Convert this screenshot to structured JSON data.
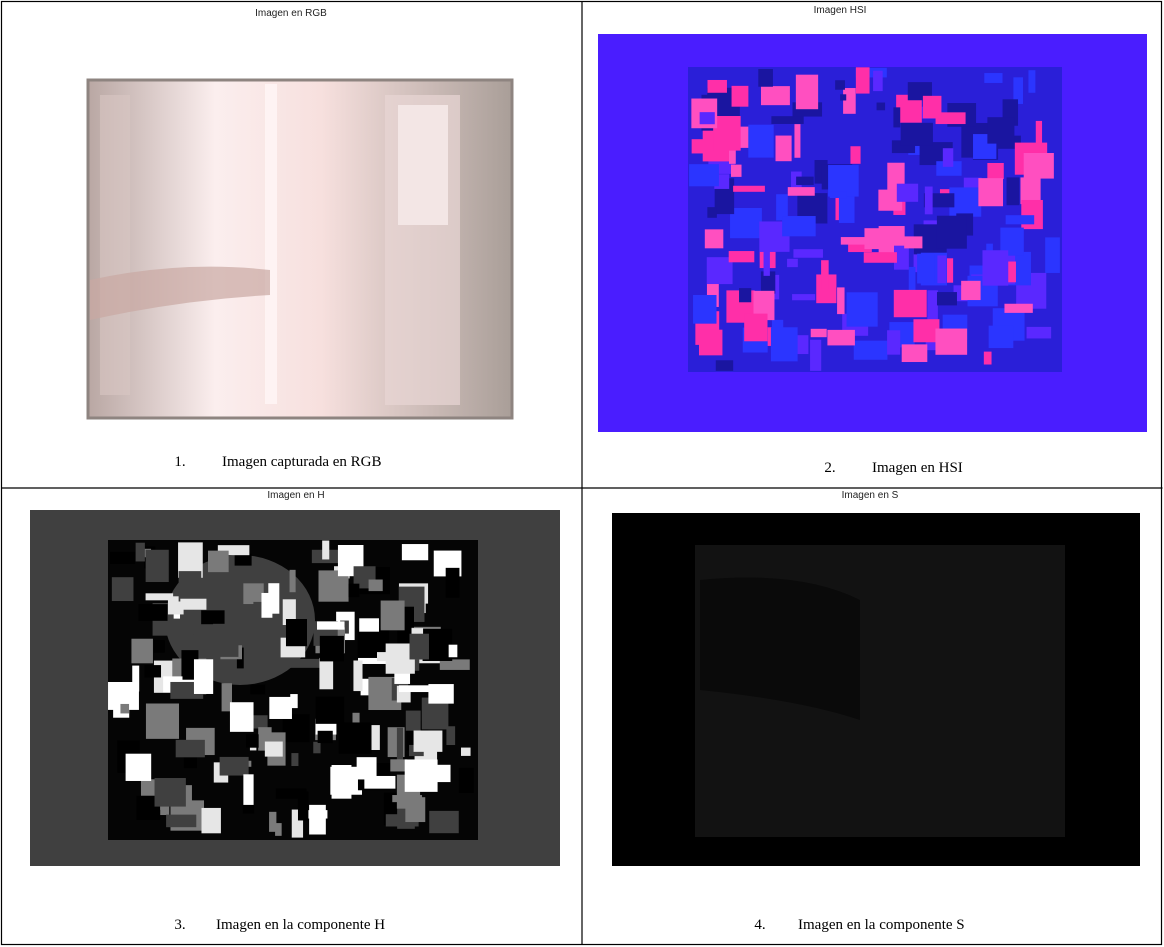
{
  "figures": [
    {
      "image_title": "Imagen en RGB",
      "number": "1.",
      "caption": "Imagen capturada en RGB"
    },
    {
      "image_title": "Imagen HSI",
      "number": "2.",
      "caption": "Imagen en HSI"
    },
    {
      "image_title": "Imagen en H",
      "number": "3.",
      "caption": "Imagen en la componente H"
    },
    {
      "image_title": "Imagen en S",
      "number": "4.",
      "caption": "Imagen en la componente S"
    }
  ]
}
